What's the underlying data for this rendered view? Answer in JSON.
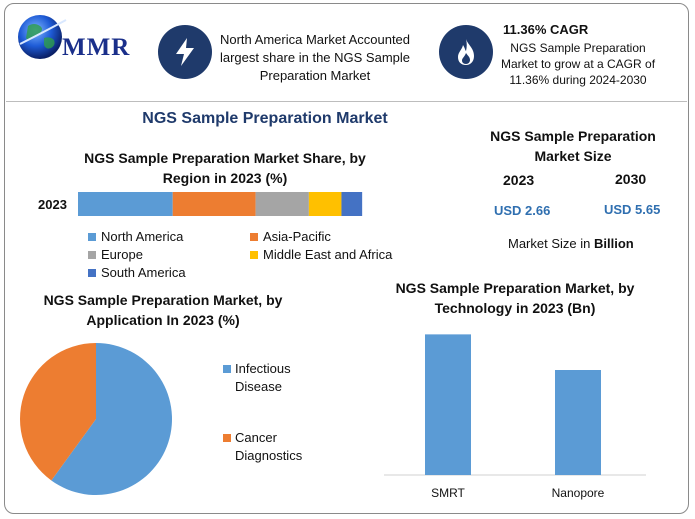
{
  "logo": {
    "text": "MMR"
  },
  "callouts": [
    {
      "icon": "lightning-icon",
      "text": "North America Market Accounted largest share in the NGS Sample Preparation Market"
    },
    {
      "icon": "flame-icon",
      "title": "11.36% CAGR",
      "text": "NGS Sample Preparation Market to grow at a CAGR of 11.36% during 2024-2030"
    }
  ],
  "main_title": "NGS Sample Preparation Market",
  "market_size": {
    "title": "NGS Sample Preparation Market Size",
    "years": [
      "2023",
      "2030"
    ],
    "values": [
      "USD 2.66",
      "USD 5.65"
    ],
    "note_prefix": "Market Size in ",
    "note_bold": "Billion"
  },
  "colors": {
    "north_america": "#5b9bd5",
    "asia_pacific": "#ed7d31",
    "europe": "#a5a5a5",
    "mea": "#ffc000",
    "south_america": "#4472c4",
    "badge": "#1f3a6b",
    "title": "#1f3a6b"
  },
  "chart_data": [
    {
      "type": "bar",
      "orientation": "horizontal-stacked",
      "title": "NGS Sample Preparation Market Share, by Region in 2023 (%)",
      "categories": [
        "2023"
      ],
      "series": [
        {
          "name": "North America",
          "values": [
            32
          ]
        },
        {
          "name": "Asia-Pacific",
          "values": [
            28
          ]
        },
        {
          "name": "Europe",
          "values": [
            18
          ]
        },
        {
          "name": "Middle East and Africa",
          "values": [
            11
          ]
        },
        {
          "name": "South America",
          "values": [
            7
          ]
        }
      ],
      "xlim": [
        0,
        100
      ],
      "legend": "bottom"
    },
    {
      "type": "pie",
      "title": "NGS Sample Preparation Market, by Application In 2023 (%)",
      "labels": [
        "Infectious Disease",
        "Cancer Diagnostics"
      ],
      "values": [
        60,
        40
      ],
      "legend": "right"
    },
    {
      "type": "bar",
      "title": "NGS Sample Preparation Market, by Technology in 2023 (Bn)",
      "categories": [
        "SMRT",
        "Nanopore"
      ],
      "values": [
        1.5,
        1.12
      ],
      "ylim": [
        0,
        1.6
      ]
    }
  ]
}
